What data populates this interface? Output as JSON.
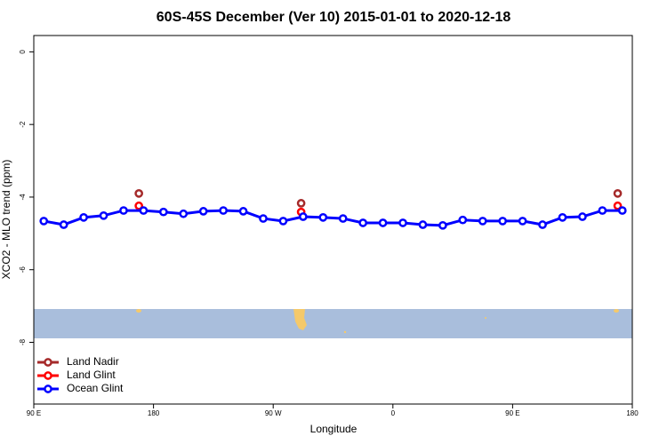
{
  "chart_data": {
    "type": "line",
    "title": "60S-45S December (Ver 10)   2015-01-01 to 2020-12-18",
    "x_label": "Longitude",
    "y_label": "XCO2 - MLO trend (ppm)",
    "xlim": [
      90,
      540
    ],
    "xticks": [
      {
        "value": 90,
        "label": "90 E"
      },
      180,
      {
        "value": 270,
        "label": "90 W"
      },
      {
        "value": 360,
        "label": "0"
      },
      {
        "value": 450,
        "label": "90 E"
      },
      {
        "value": 540,
        "label": "180"
      }
    ],
    "ylim": [
      -9.7,
      0.45
    ],
    "yticks": [
      0,
      -2,
      -4,
      -6,
      -8
    ],
    "legend": "bottom-left",
    "series": [
      {
        "name": "Land Nadir",
        "color": "#a52a2a",
        "line": false,
        "x": [
          169,
          291,
          529
        ],
        "values": [
          -3.9,
          -4.17,
          -3.9
        ]
      },
      {
        "name": "Land Glint",
        "color": "#ff0000",
        "line": false,
        "x": [
          169,
          291,
          529
        ],
        "values": [
          -4.24,
          -4.41,
          -4.24
        ]
      },
      {
        "name": "Ocean Glint",
        "color": "#0000ff",
        "line": true,
        "x": [
          97.5,
          112.5,
          127.5,
          142.5,
          157.5,
          172.5,
          187.5,
          202.5,
          217.5,
          232.5,
          247.5,
          262.5,
          277.5,
          292.5,
          307.5,
          322.5,
          337.5,
          352.5,
          367.5,
          382.5,
          397.5,
          412.5,
          427.5,
          442.5,
          457.5,
          472.5,
          487.5,
          502.5,
          517.5,
          532.5
        ],
        "values": [
          -4.66,
          -4.76,
          -4.56,
          -4.51,
          -4.37,
          -4.37,
          -4.41,
          -4.46,
          -4.39,
          -4.37,
          -4.39,
          -4.59,
          -4.66,
          -4.54,
          -4.56,
          -4.59,
          -4.71,
          -4.71,
          -4.71,
          -4.76,
          -4.78,
          -4.63,
          -4.66,
          -4.66,
          -4.66,
          -4.76,
          -4.56,
          -4.54,
          -4.37,
          -4.37
        ]
      }
    ]
  }
}
